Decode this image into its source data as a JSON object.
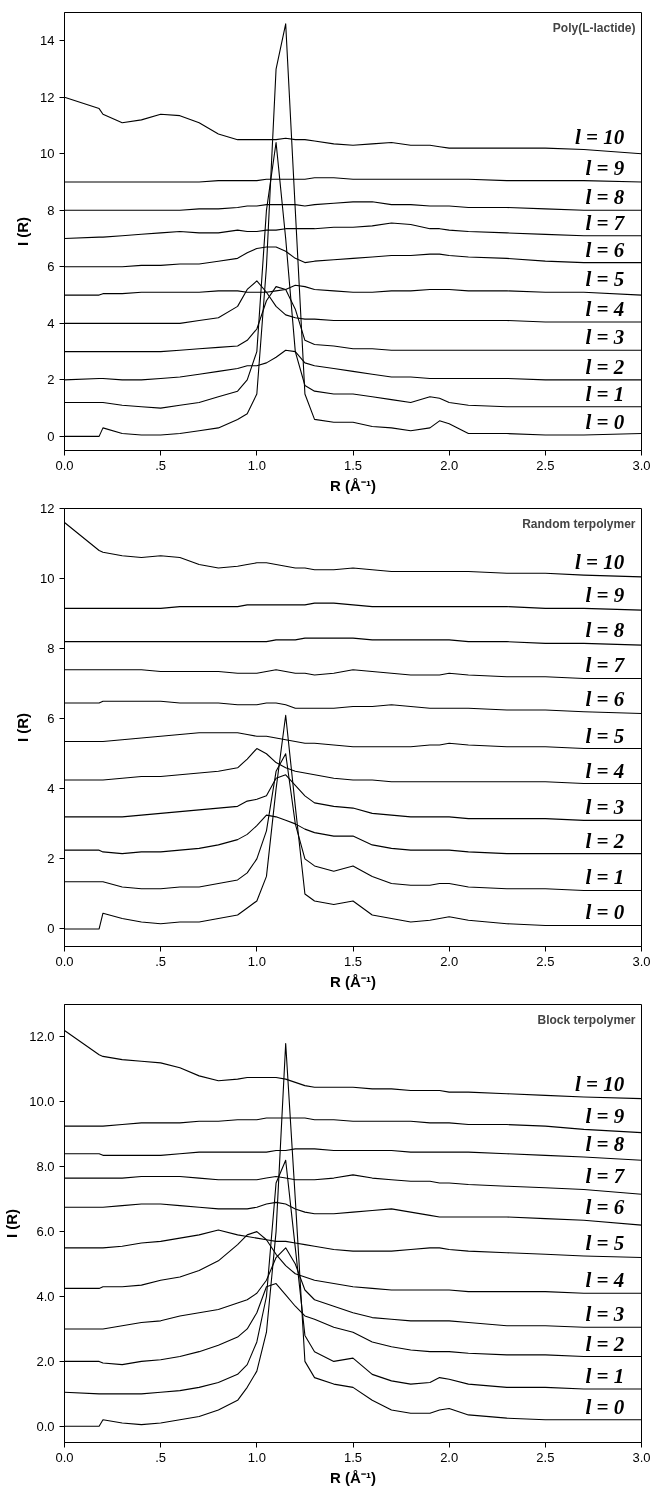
{
  "chart_data": [
    {
      "type": "line",
      "title": "Poly(L-lactide)",
      "xlabel": "R (Å⁻¹)",
      "ylabel": "I (R)",
      "xlim": [
        0,
        3
      ],
      "xticks": [
        {
          "value": 0,
          "label": "0.0"
        },
        {
          "value": 0.5,
          "label": ".5"
        },
        {
          "value": 1,
          "label": "1.0"
        },
        {
          "value": 1.5,
          "label": "1.5"
        },
        {
          "value": 2,
          "label": "2.0"
        },
        {
          "value": 2.5,
          "label": "2.5"
        },
        {
          "value": 3,
          "label": "3.0"
        }
      ],
      "ylim": [
        -0.5,
        15
      ],
      "yticks": [
        0,
        2,
        4,
        6,
        8,
        10,
        12,
        14
      ],
      "x": [
        0,
        0.18,
        0.2,
        0.3,
        0.4,
        0.5,
        0.6,
        0.7,
        0.8,
        0.9,
        0.95,
        1.0,
        1.05,
        1.1,
        1.15,
        1.2,
        1.25,
        1.3,
        1.4,
        1.5,
        1.6,
        1.7,
        1.8,
        1.9,
        1.95,
        2.0,
        2.1,
        2.3,
        2.5,
        2.7,
        3.0
      ],
      "series": [
        {
          "name": "l = 0",
          "color": "#000000",
          "values": [
            0,
            0,
            0.3,
            0.1,
            0.05,
            0.05,
            0.1,
            0.2,
            0.3,
            0.6,
            0.8,
            1.5,
            6,
            13,
            14.6,
            8,
            1.5,
            0.6,
            0.5,
            0.5,
            0.35,
            0.3,
            0.2,
            0.3,
            0.55,
            0.45,
            0.1,
            0.1,
            0.05,
            0.05,
            0.1
          ]
        },
        {
          "name": "l = 1",
          "color": "#000000",
          "values": [
            1.2,
            1.2,
            1.2,
            1.1,
            1.05,
            1.0,
            1.1,
            1.2,
            1.4,
            1.6,
            2.0,
            3,
            8,
            10.4,
            7,
            3,
            1.8,
            1.6,
            1.5,
            1.5,
            1.4,
            1.3,
            1.2,
            1.4,
            1.35,
            1.2,
            1.1,
            1.05,
            1.05,
            1.05,
            1.05
          ]
        },
        {
          "name": "l = 2",
          "color": "#000000",
          "values": [
            2.0,
            2.05,
            2.05,
            2.0,
            2.0,
            2.05,
            2.1,
            2.2,
            2.3,
            2.4,
            2.5,
            2.5,
            2.6,
            2.8,
            3.05,
            3.0,
            2.6,
            2.5,
            2.4,
            2.3,
            2.2,
            2.1,
            2.1,
            2.05,
            2.05,
            2.05,
            2.05,
            2.05,
            2.0,
            2.0,
            2.0
          ]
        },
        {
          "name": "l = 3",
          "color": "#000000",
          "values": [
            3.0,
            3.0,
            3.0,
            3.0,
            3.0,
            3.0,
            3.05,
            3.1,
            3.15,
            3.2,
            3.4,
            3.8,
            4.8,
            5.3,
            5.2,
            4.5,
            3.4,
            3.25,
            3.2,
            3.1,
            3.1,
            3.05,
            3.05,
            3.05,
            3.05,
            3.05,
            3.05,
            3.05,
            3.05,
            3.05,
            3.05
          ]
        },
        {
          "name": "l = 4",
          "color": "#000000",
          "values": [
            4.0,
            4.0,
            4.0,
            4.0,
            4.0,
            4.0,
            4.0,
            4.1,
            4.2,
            4.6,
            5.2,
            5.5,
            5.1,
            4.6,
            4.3,
            4.2,
            4.15,
            4.15,
            4.1,
            4.1,
            4.1,
            4.1,
            4.1,
            4.1,
            4.1,
            4.1,
            4.1,
            4.1,
            4.05,
            4.05,
            4.05
          ]
        },
        {
          "name": "l = 5",
          "color": "#000000",
          "values": [
            5.0,
            5.0,
            5.05,
            5.05,
            5.1,
            5.1,
            5.1,
            5.1,
            5.15,
            5.15,
            5.1,
            5.1,
            5.1,
            5.15,
            5.2,
            5.35,
            5.3,
            5.2,
            5.15,
            5.1,
            5.1,
            5.15,
            5.15,
            5.2,
            5.2,
            5.2,
            5.15,
            5.15,
            5.1,
            5.1,
            5.0
          ]
        },
        {
          "name": "l = 6",
          "color": "#000000",
          "values": [
            6.0,
            6.0,
            6.0,
            6.0,
            6.05,
            6.05,
            6.1,
            6.1,
            6.2,
            6.3,
            6.5,
            6.65,
            6.7,
            6.7,
            6.55,
            6.3,
            6.15,
            6.2,
            6.25,
            6.3,
            6.35,
            6.4,
            6.4,
            6.45,
            6.45,
            6.4,
            6.35,
            6.3,
            6.2,
            6.15,
            6.15
          ]
        },
        {
          "name": "l = 7",
          "color": "#000000",
          "values": [
            7.0,
            7.05,
            7.05,
            7.1,
            7.15,
            7.2,
            7.25,
            7.2,
            7.2,
            7.3,
            7.25,
            7.25,
            7.3,
            7.3,
            7.35,
            7.35,
            7.35,
            7.35,
            7.4,
            7.4,
            7.45,
            7.55,
            7.5,
            7.35,
            7.35,
            7.3,
            7.25,
            7.2,
            7.15,
            7.1,
            7.1
          ]
        },
        {
          "name": "l = 8",
          "color": "#000000",
          "values": [
            8.0,
            8.0,
            8.0,
            8.0,
            8.0,
            8.0,
            8.0,
            8.05,
            8.05,
            8.1,
            8.15,
            8.15,
            8.2,
            8.2,
            8.2,
            8.2,
            8.15,
            8.2,
            8.25,
            8.3,
            8.3,
            8.2,
            8.2,
            8.15,
            8.15,
            8.15,
            8.1,
            8.1,
            8.05,
            8.0,
            8.0
          ]
        },
        {
          "name": "l = 9",
          "color": "#000000",
          "values": [
            9.0,
            9.0,
            9.0,
            9.0,
            9.0,
            9.0,
            9.0,
            9.0,
            9.05,
            9.05,
            9.05,
            9.05,
            9.1,
            9.1,
            9.1,
            9.1,
            9.1,
            9.15,
            9.15,
            9.1,
            9.1,
            9.1,
            9.1,
            9.1,
            9.1,
            9.1,
            9.1,
            9.05,
            9.05,
            9.05,
            9.0
          ]
        },
        {
          "name": "l = 10",
          "color": "#000000",
          "values": [
            12.0,
            11.6,
            11.4,
            11.1,
            11.2,
            11.4,
            11.35,
            11.1,
            10.7,
            10.5,
            10.5,
            10.5,
            10.5,
            10.5,
            10.55,
            10.5,
            10.5,
            10.45,
            10.35,
            10.3,
            10.35,
            10.4,
            10.3,
            10.3,
            10.25,
            10.2,
            10.2,
            10.2,
            10.2,
            10.15,
            10.0
          ]
        }
      ]
    },
    {
      "type": "line",
      "title": "Random terpolymer",
      "xlabel": "R (Å⁻¹)",
      "ylabel": "I (R)",
      "xlim": [
        0,
        3
      ],
      "xticks": [
        {
          "value": 0,
          "label": "0.0"
        },
        {
          "value": 0.5,
          "label": ".5"
        },
        {
          "value": 1,
          "label": "1.0"
        },
        {
          "value": 1.5,
          "label": "1.5"
        },
        {
          "value": 2,
          "label": "2.0"
        },
        {
          "value": 2.5,
          "label": "2.5"
        },
        {
          "value": 3,
          "label": "3.0"
        }
      ],
      "ylim": [
        -0.5,
        12
      ],
      "yticks": [
        0,
        2,
        4,
        6,
        8,
        10,
        12
      ],
      "x": [
        0,
        0.18,
        0.2,
        0.3,
        0.4,
        0.5,
        0.6,
        0.7,
        0.8,
        0.9,
        0.95,
        1.0,
        1.05,
        1.1,
        1.15,
        1.2,
        1.25,
        1.3,
        1.4,
        1.5,
        1.6,
        1.7,
        1.8,
        1.9,
        1.95,
        2.0,
        2.1,
        2.3,
        2.5,
        2.7,
        3.0
      ],
      "series": [
        {
          "name": "l = 0",
          "color": "#000000",
          "values": [
            0,
            0,
            0.45,
            0.3,
            0.2,
            0.15,
            0.2,
            0.2,
            0.3,
            0.4,
            0.6,
            0.8,
            1.5,
            4,
            6.1,
            3.5,
            1.0,
            0.8,
            0.7,
            0.8,
            0.4,
            0.3,
            0.2,
            0.25,
            0.3,
            0.35,
            0.25,
            0.15,
            0.1,
            0.1,
            0.1
          ]
        },
        {
          "name": "l = 1",
          "color": "#000000",
          "values": [
            1.35,
            1.35,
            1.35,
            1.2,
            1.15,
            1.15,
            1.2,
            1.2,
            1.3,
            1.4,
            1.6,
            2.0,
            2.8,
            4.5,
            5.0,
            3.0,
            2.0,
            1.8,
            1.65,
            1.8,
            1.5,
            1.3,
            1.25,
            1.25,
            1.3,
            1.3,
            1.2,
            1.15,
            1.15,
            1.1,
            1.1
          ]
        },
        {
          "name": "l = 2",
          "color": "#000000",
          "values": [
            2.25,
            2.25,
            2.2,
            2.15,
            2.2,
            2.2,
            2.25,
            2.3,
            2.4,
            2.55,
            2.7,
            2.95,
            3.25,
            3.2,
            3.1,
            3.0,
            2.85,
            2.75,
            2.65,
            2.65,
            2.4,
            2.3,
            2.25,
            2.25,
            2.25,
            2.25,
            2.2,
            2.15,
            2.15,
            2.15,
            2.15
          ]
        },
        {
          "name": "l = 3",
          "color": "#000000",
          "values": [
            3.2,
            3.2,
            3.2,
            3.2,
            3.25,
            3.3,
            3.35,
            3.4,
            3.45,
            3.5,
            3.65,
            3.7,
            3.8,
            4.3,
            4.4,
            4.1,
            3.8,
            3.6,
            3.5,
            3.45,
            3.3,
            3.25,
            3.2,
            3.2,
            3.2,
            3.2,
            3.15,
            3.15,
            3.15,
            3.1,
            3.1
          ]
        },
        {
          "name": "l = 4",
          "color": "#000000",
          "values": [
            4.25,
            4.25,
            4.25,
            4.3,
            4.35,
            4.35,
            4.4,
            4.45,
            4.5,
            4.6,
            4.85,
            5.15,
            5.0,
            4.75,
            4.6,
            4.5,
            4.45,
            4.4,
            4.3,
            4.25,
            4.25,
            4.2,
            4.2,
            4.2,
            4.2,
            4.2,
            4.2,
            4.2,
            4.2,
            4.15,
            4.15
          ]
        },
        {
          "name": "l = 5",
          "color": "#000000",
          "values": [
            5.35,
            5.35,
            5.35,
            5.4,
            5.45,
            5.5,
            5.55,
            5.6,
            5.6,
            5.6,
            5.55,
            5.5,
            5.5,
            5.45,
            5.4,
            5.35,
            5.3,
            5.3,
            5.25,
            5.2,
            5.2,
            5.2,
            5.2,
            5.25,
            5.25,
            5.3,
            5.25,
            5.2,
            5.2,
            5.15,
            5.15
          ]
        },
        {
          "name": "l = 6",
          "color": "#000000",
          "values": [
            6.45,
            6.45,
            6.5,
            6.5,
            6.5,
            6.5,
            6.45,
            6.45,
            6.45,
            6.4,
            6.4,
            6.4,
            6.45,
            6.45,
            6.4,
            6.3,
            6.3,
            6.3,
            6.3,
            6.35,
            6.35,
            6.4,
            6.35,
            6.3,
            6.3,
            6.3,
            6.3,
            6.25,
            6.25,
            6.2,
            6.15
          ]
        },
        {
          "name": "l = 7",
          "color": "#000000",
          "values": [
            7.4,
            7.4,
            7.4,
            7.4,
            7.4,
            7.35,
            7.35,
            7.35,
            7.35,
            7.3,
            7.3,
            7.3,
            7.35,
            7.4,
            7.35,
            7.3,
            7.3,
            7.25,
            7.3,
            7.4,
            7.35,
            7.3,
            7.25,
            7.25,
            7.25,
            7.3,
            7.25,
            7.2,
            7.2,
            7.15,
            7.15
          ]
        },
        {
          "name": "l = 8",
          "color": "#000000",
          "values": [
            8.2,
            8.2,
            8.2,
            8.2,
            8.2,
            8.2,
            8.2,
            8.2,
            8.2,
            8.2,
            8.2,
            8.2,
            8.2,
            8.25,
            8.25,
            8.25,
            8.3,
            8.3,
            8.3,
            8.3,
            8.25,
            8.25,
            8.25,
            8.25,
            8.25,
            8.25,
            8.2,
            8.2,
            8.15,
            8.15,
            8.1
          ]
        },
        {
          "name": "l = 9",
          "color": "#000000",
          "values": [
            9.15,
            9.15,
            9.15,
            9.15,
            9.15,
            9.15,
            9.2,
            9.2,
            9.2,
            9.2,
            9.25,
            9.25,
            9.25,
            9.25,
            9.25,
            9.25,
            9.25,
            9.3,
            9.3,
            9.25,
            9.2,
            9.2,
            9.2,
            9.2,
            9.2,
            9.2,
            9.2,
            9.2,
            9.15,
            9.15,
            9.1
          ]
        },
        {
          "name": "l = 10",
          "color": "#000000",
          "values": [
            11.6,
            10.8,
            10.75,
            10.65,
            10.6,
            10.65,
            10.6,
            10.4,
            10.3,
            10.35,
            10.4,
            10.45,
            10.45,
            10.4,
            10.35,
            10.3,
            10.3,
            10.25,
            10.25,
            10.3,
            10.25,
            10.2,
            10.2,
            10.2,
            10.2,
            10.2,
            10.2,
            10.15,
            10.15,
            10.1,
            10.05
          ]
        }
      ]
    },
    {
      "type": "line",
      "title": "Block terpolymer",
      "xlabel": "R (Å⁻¹)",
      "ylabel": "I (R)",
      "xlim": [
        0,
        3
      ],
      "xticks": [
        {
          "value": 0,
          "label": "0.0"
        },
        {
          "value": 0.5,
          "label": ".5"
        },
        {
          "value": 1,
          "label": "1.0"
        },
        {
          "value": 1.5,
          "label": "1.5"
        },
        {
          "value": 2,
          "label": "2.0"
        },
        {
          "value": 2.5,
          "label": "2.5"
        },
        {
          "value": 3,
          "label": "3.0"
        }
      ],
      "ylim": [
        -0.5,
        13
      ],
      "yticks": [
        {
          "value": 0,
          "label": "0.0"
        },
        {
          "value": 2,
          "label": "2.0"
        },
        {
          "value": 4,
          "label": "4.0"
        },
        {
          "value": 6,
          "label": "6.0"
        },
        {
          "value": 8,
          "label": "8.0"
        },
        {
          "value": 10,
          "label": "10.0"
        },
        {
          "value": 12,
          "label": "12.0"
        }
      ],
      "x": [
        0,
        0.18,
        0.2,
        0.3,
        0.4,
        0.5,
        0.6,
        0.7,
        0.8,
        0.9,
        0.95,
        1.0,
        1.05,
        1.1,
        1.15,
        1.2,
        1.25,
        1.3,
        1.4,
        1.5,
        1.6,
        1.7,
        1.8,
        1.9,
        1.95,
        2.0,
        2.1,
        2.3,
        2.5,
        2.7,
        3.0
      ],
      "series": [
        {
          "name": "l = 0",
          "color": "#000000",
          "values": [
            0,
            0,
            0.2,
            0.1,
            0.05,
            0.1,
            0.2,
            0.3,
            0.5,
            0.8,
            1.2,
            1.7,
            2.9,
            6,
            11.8,
            7,
            2,
            1.5,
            1.3,
            1.2,
            0.8,
            0.5,
            0.4,
            0.4,
            0.5,
            0.55,
            0.35,
            0.25,
            0.2,
            0.2,
            0.2
          ]
        },
        {
          "name": "l = 1",
          "color": "#000000",
          "values": [
            1.05,
            1.0,
            1.0,
            1.0,
            1.0,
            1.05,
            1.1,
            1.2,
            1.35,
            1.6,
            1.9,
            2.6,
            4.0,
            7.5,
            8.2,
            5.5,
            2.8,
            2.3,
            2.0,
            2.1,
            1.6,
            1.4,
            1.3,
            1.35,
            1.5,
            1.45,
            1.3,
            1.2,
            1.2,
            1.15,
            1.15
          ]
        },
        {
          "name": "l = 2",
          "color": "#000000",
          "values": [
            2.0,
            2.0,
            1.95,
            1.9,
            2.0,
            2.05,
            2.15,
            2.3,
            2.5,
            2.75,
            3.0,
            3.5,
            4.3,
            4.4,
            4.05,
            3.7,
            3.4,
            3.3,
            3.05,
            2.9,
            2.6,
            2.45,
            2.35,
            2.3,
            2.3,
            2.3,
            2.25,
            2.2,
            2.2,
            2.15,
            2.15
          ]
        },
        {
          "name": "l = 3",
          "color": "#000000",
          "values": [
            3.0,
            3.0,
            3.0,
            3.1,
            3.2,
            3.25,
            3.4,
            3.5,
            3.6,
            3.8,
            3.9,
            4.1,
            4.5,
            5.2,
            5.5,
            5.0,
            4.2,
            3.9,
            3.7,
            3.5,
            3.35,
            3.3,
            3.25,
            3.25,
            3.25,
            3.25,
            3.2,
            3.1,
            3.1,
            3.05,
            3.05
          ]
        },
        {
          "name": "l = 4",
          "color": "#000000",
          "values": [
            4.25,
            4.25,
            4.3,
            4.3,
            4.35,
            4.5,
            4.6,
            4.8,
            5.1,
            5.6,
            5.9,
            6.0,
            5.75,
            5.3,
            4.95,
            4.7,
            4.6,
            4.5,
            4.4,
            4.3,
            4.25,
            4.2,
            4.2,
            4.2,
            4.2,
            4.2,
            4.15,
            4.15,
            4.15,
            4.1,
            4.1
          ]
        },
        {
          "name": "l = 5",
          "color": "#000000",
          "values": [
            5.5,
            5.5,
            5.5,
            5.55,
            5.65,
            5.7,
            5.8,
            5.9,
            6.05,
            5.9,
            5.85,
            5.8,
            5.75,
            5.7,
            5.7,
            5.65,
            5.6,
            5.55,
            5.45,
            5.4,
            5.4,
            5.4,
            5.45,
            5.5,
            5.5,
            5.45,
            5.4,
            5.35,
            5.3,
            5.25,
            5.2
          ]
        },
        {
          "name": "l = 6",
          "color": "#000000",
          "values": [
            6.75,
            6.75,
            6.75,
            6.8,
            6.85,
            6.85,
            6.8,
            6.75,
            6.7,
            6.7,
            6.7,
            6.75,
            6.85,
            6.9,
            6.85,
            6.7,
            6.6,
            6.55,
            6.55,
            6.6,
            6.65,
            6.7,
            6.6,
            6.5,
            6.45,
            6.45,
            6.45,
            6.45,
            6.4,
            6.35,
            6.2
          ]
        },
        {
          "name": "l = 7",
          "color": "#000000",
          "values": [
            7.65,
            7.65,
            7.65,
            7.65,
            7.7,
            7.7,
            7.7,
            7.65,
            7.6,
            7.6,
            7.6,
            7.6,
            7.65,
            7.7,
            7.65,
            7.6,
            7.6,
            7.6,
            7.65,
            7.75,
            7.65,
            7.6,
            7.55,
            7.55,
            7.5,
            7.5,
            7.45,
            7.4,
            7.35,
            7.3,
            7.15
          ]
        },
        {
          "name": "l = 8",
          "color": "#000000",
          "values": [
            8.4,
            8.4,
            8.35,
            8.35,
            8.35,
            8.35,
            8.4,
            8.45,
            8.45,
            8.45,
            8.45,
            8.45,
            8.45,
            8.5,
            8.5,
            8.55,
            8.55,
            8.55,
            8.5,
            8.5,
            8.5,
            8.5,
            8.45,
            8.45,
            8.45,
            8.45,
            8.45,
            8.4,
            8.35,
            8.3,
            8.2
          ]
        },
        {
          "name": "l = 9",
          "color": "#000000",
          "values": [
            9.25,
            9.25,
            9.25,
            9.3,
            9.35,
            9.35,
            9.35,
            9.4,
            9.4,
            9.45,
            9.45,
            9.45,
            9.5,
            9.5,
            9.5,
            9.5,
            9.5,
            9.45,
            9.45,
            9.4,
            9.4,
            9.4,
            9.4,
            9.35,
            9.35,
            9.35,
            9.3,
            9.3,
            9.25,
            9.15,
            9.05
          ]
        },
        {
          "name": "l = 10",
          "color": "#000000",
          "values": [
            12.2,
            11.45,
            11.4,
            11.3,
            11.25,
            11.2,
            11.05,
            10.8,
            10.65,
            10.7,
            10.75,
            10.75,
            10.75,
            10.75,
            10.7,
            10.6,
            10.5,
            10.45,
            10.45,
            10.45,
            10.4,
            10.4,
            10.35,
            10.35,
            10.35,
            10.3,
            10.3,
            10.25,
            10.2,
            10.15,
            10.1
          ]
        }
      ]
    }
  ]
}
